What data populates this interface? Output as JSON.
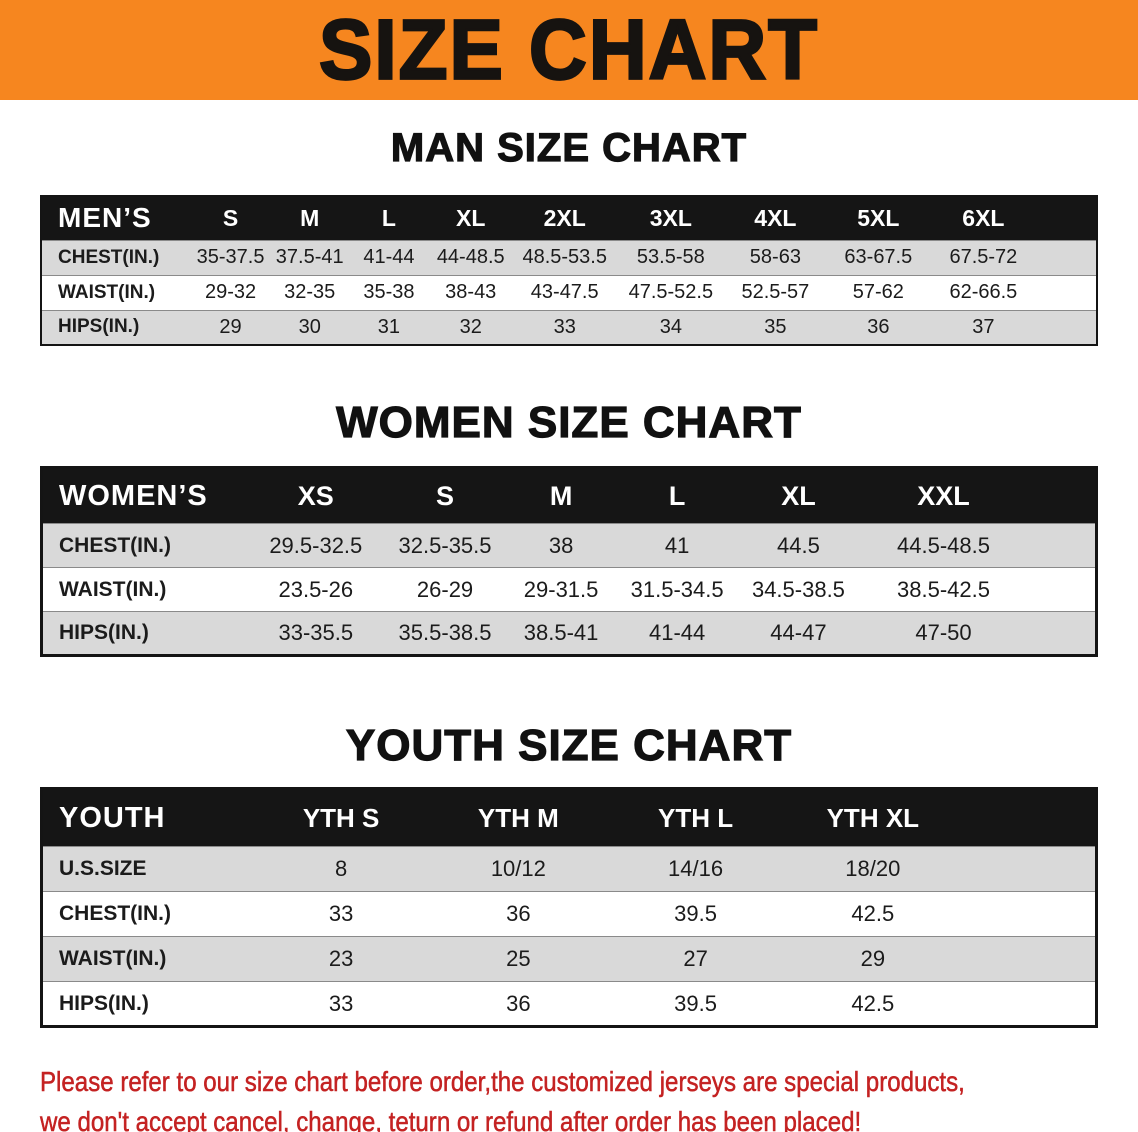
{
  "banner": {
    "title": "SIZE CHART"
  },
  "sections": [
    {
      "id": "men",
      "heading": "MAN SIZE CHART",
      "table": {
        "header": [
          "MEN’S",
          "S",
          "M",
          "L",
          "XL",
          "2XL",
          "3XL",
          "4XL",
          "5XL",
          "6XL"
        ],
        "rows": [
          {
            "label": "CHEST(IN.)",
            "values": [
              "35-37.5",
              "37.5-41",
              "41-44",
              "44-48.5",
              "48.5-53.5",
              "53.5-58",
              "58-63",
              "63-67.5",
              "67.5-72"
            ]
          },
          {
            "label": "WAIST(IN.)",
            "values": [
              "29-32",
              "32-35",
              "35-38",
              "38-43",
              "43-47.5",
              "47.5-52.5",
              "52.5-57",
              "57-62",
              "62-66.5"
            ]
          },
          {
            "label": "HIPS(IN.)",
            "values": [
              "29",
              "30",
              "31",
              "32",
              "33",
              "34",
              "35",
              "36",
              "37"
            ]
          }
        ]
      }
    },
    {
      "id": "women",
      "heading": "WOMEN SIZE CHART",
      "table": {
        "header": [
          "WOMEN’S",
          "XS",
          "S",
          "M",
          "L",
          "XL",
          "XXL"
        ],
        "rows": [
          {
            "label": "CHEST(IN.)",
            "values": [
              "29.5-32.5",
              "32.5-35.5",
              "38",
              "41",
              "44.5",
              "44.5-48.5"
            ]
          },
          {
            "label": "WAIST(IN.)",
            "values": [
              "23.5-26",
              "26-29",
              "29-31.5",
              "31.5-34.5",
              "34.5-38.5",
              "38.5-42.5"
            ]
          },
          {
            "label": "HIPS(IN.)",
            "values": [
              "33-35.5",
              "35.5-38.5",
              "38.5-41",
              "41-44",
              "44-47",
              "47-50"
            ]
          }
        ]
      }
    },
    {
      "id": "youth",
      "heading": "YOUTH SIZE CHART",
      "table": {
        "header": [
          "YOUTH",
          "YTH S",
          "YTH M",
          "YTH L",
          "YTH XL"
        ],
        "rows": [
          {
            "label": "U.S.SIZE",
            "values": [
              "8",
              "10/12",
              "14/16",
              "18/20"
            ]
          },
          {
            "label": "CHEST(IN.)",
            "values": [
              "33",
              "36",
              "39.5",
              "42.5"
            ]
          },
          {
            "label": "WAIST(IN.)",
            "values": [
              "23",
              "25",
              "27",
              "29"
            ]
          },
          {
            "label": "HIPS(IN.)",
            "values": [
              "33",
              "36",
              "39.5",
              "42.5"
            ]
          }
        ]
      }
    }
  ],
  "footer": {
    "line1": "Please refer to our size chart before order,the customized jerseys are special products,",
    "line2": "we don't accept cancel, change, teturn or refund after order has been placed!"
  },
  "colors": {
    "banner-bg": "#F6861F",
    "banner-text": "#161310",
    "table-header-bg": "#151515",
    "table-header-text": "#FFFFFF",
    "row-shade": "#D9D9D9",
    "notice-text": "#C42222"
  }
}
